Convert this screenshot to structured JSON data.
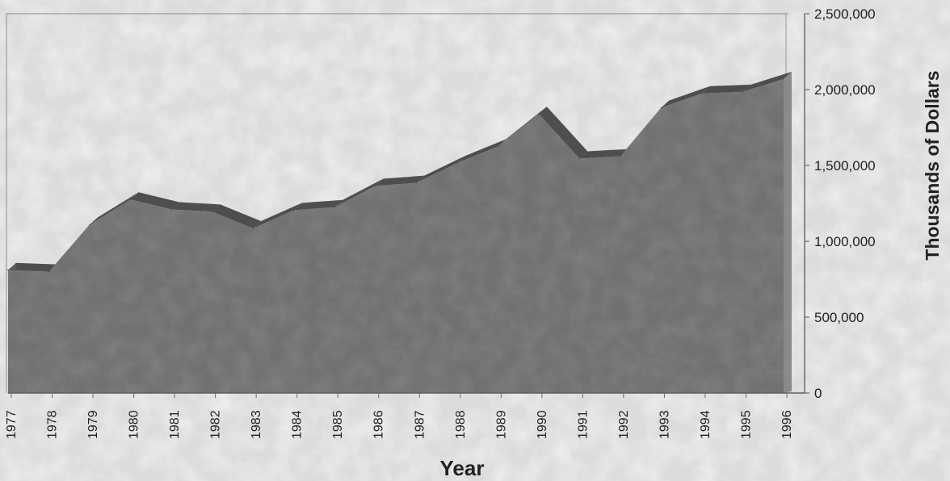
{
  "chart_data": {
    "type": "area",
    "title": "",
    "xlabel": "Year",
    "ylabel": "Thousands of Dollars",
    "categories": [
      "1977",
      "1978",
      "1979",
      "1980",
      "1981",
      "1982",
      "1983",
      "1984",
      "1985",
      "1986",
      "1987",
      "1988",
      "1989",
      "1990",
      "1991",
      "1992",
      "1993",
      "1994",
      "1995",
      "1996"
    ],
    "y_ticks": [
      "0",
      "500,000",
      "1,000,000",
      "1,500,000",
      "2,000,000",
      "2,500,000"
    ],
    "y_tick_values": [
      0,
      500000,
      1000000,
      1500000,
      2000000,
      2500000
    ],
    "ylim": [
      0,
      2500000
    ],
    "series": [
      {
        "values": [
          810000,
          800000,
          1110000,
          1275000,
          1210000,
          1195000,
          1085000,
          1205000,
          1225000,
          1365000,
          1385000,
          1515000,
          1625000,
          1840000,
          1545000,
          1560000,
          1880000,
          1975000,
          1985000,
          2070000
        ]
      }
    ],
    "grid": false,
    "legend": "none",
    "y_axis_side": "right",
    "style": "3d-area",
    "colors": {
      "area_front": "#717171",
      "area_top": "#4e4e4e",
      "area_side": "#5a5a5a",
      "background": "#dcdcdc",
      "axis": "#6a6a6a",
      "text": "#222222"
    }
  }
}
